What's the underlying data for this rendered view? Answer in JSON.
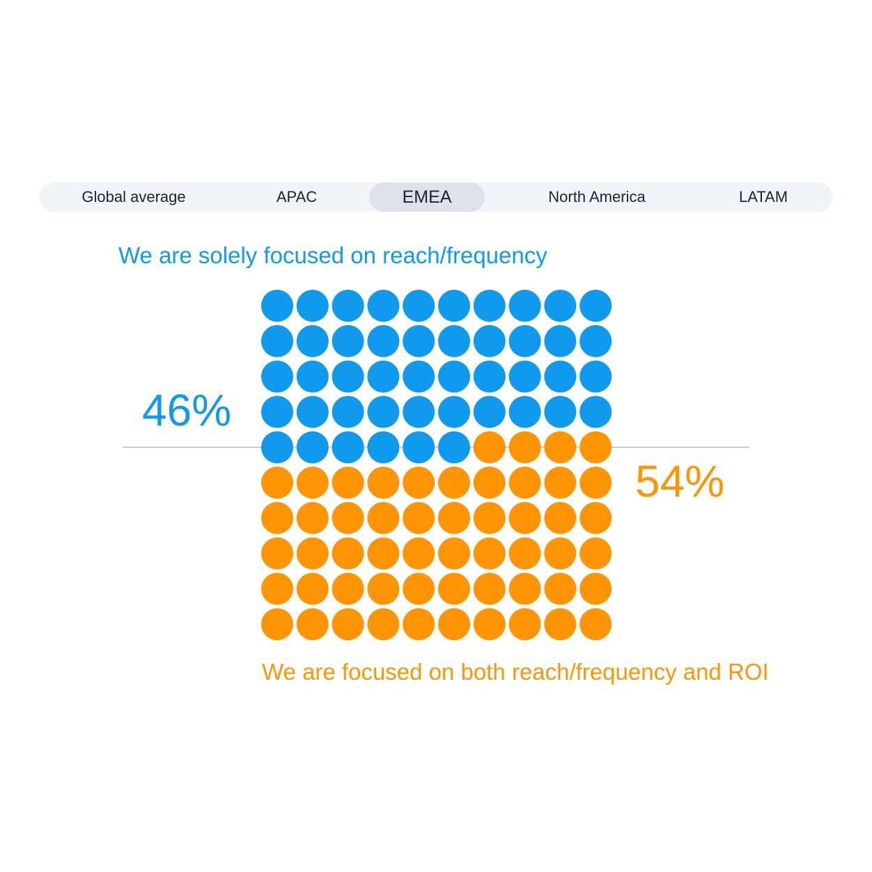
{
  "tabs": [
    {
      "label": "Global average",
      "active": false
    },
    {
      "label": "APAC",
      "active": false
    },
    {
      "label": "EMEA",
      "active": true
    },
    {
      "label": "North America",
      "active": false
    },
    {
      "label": "LATAM",
      "active": false
    }
  ],
  "chart_data": {
    "type": "waffle",
    "grid_rows": 10,
    "grid_cols": 10,
    "series": [
      {
        "name": "We are solely focused on reach/frequency",
        "value": 46,
        "label": "46%",
        "color": "#0f9aee"
      },
      {
        "name": "We are focused on both reach/frequency and ROI",
        "value": 54,
        "label": "54%",
        "color": "#ff9505"
      }
    ],
    "divider_color": "#b8bdc9"
  }
}
